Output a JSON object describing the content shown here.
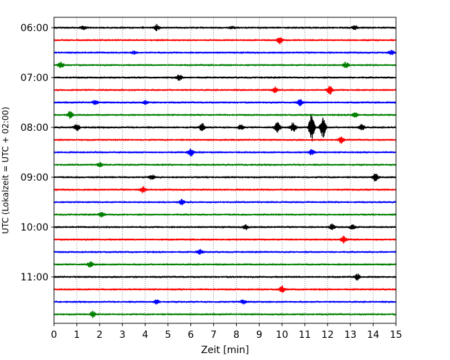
{
  "chart_data": {
    "type": "line",
    "subtype": "helicorder",
    "xlabel": "Zeit  [min]",
    "ylabel": "UTC (Lokalzeit = UTC + 02:00)",
    "xlim": [
      0,
      15
    ],
    "x_ticks": [
      "0",
      "1",
      "2",
      "3",
      "4",
      "5",
      "6",
      "7",
      "8",
      "9",
      "10",
      "11",
      "12",
      "13",
      "14",
      "15"
    ],
    "y_tick_labels": [
      "06:00",
      "07:00",
      "08:00",
      "09:00",
      "10:00",
      "11:00"
    ],
    "grid": "vertical-dotted",
    "trace_minutes": 15,
    "trace_colors": [
      "#000000",
      "#ff0000",
      "#0000ff",
      "#008000"
    ],
    "traces": [
      {
        "start": "06:00",
        "color": "#000000",
        "events": [
          [
            4.5,
            0.35
          ],
          [
            13.2,
            0.25
          ],
          [
            1.3,
            0.2
          ],
          [
            7.8,
            0.15
          ]
        ]
      },
      {
        "start": "06:15",
        "color": "#ff0000",
        "events": [
          [
            9.9,
            0.45
          ]
        ]
      },
      {
        "start": "06:30",
        "color": "#0000ff",
        "events": [
          [
            3.5,
            0.15
          ],
          [
            14.8,
            0.25
          ]
        ]
      },
      {
        "start": "06:45",
        "color": "#008000",
        "events": [
          [
            0.3,
            0.35
          ],
          [
            12.8,
            0.35
          ]
        ]
      },
      {
        "start": "07:00",
        "color": "#000000",
        "events": [
          [
            5.5,
            0.35
          ]
        ]
      },
      {
        "start": "07:15",
        "color": "#ff0000",
        "events": [
          [
            9.7,
            0.35
          ],
          [
            12.1,
            0.55
          ]
        ]
      },
      {
        "start": "07:30",
        "color": "#0000ff",
        "events": [
          [
            1.8,
            0.25
          ],
          [
            4.0,
            0.2
          ],
          [
            10.8,
            0.4
          ]
        ]
      },
      {
        "start": "07:45",
        "color": "#008000",
        "events": [
          [
            0.7,
            0.45
          ],
          [
            13.2,
            0.35
          ]
        ]
      },
      {
        "start": "08:00",
        "color": "#000000",
        "events": [
          [
            1.0,
            0.45
          ],
          [
            6.5,
            0.5
          ],
          [
            8.2,
            0.3
          ],
          [
            9.8,
            0.7
          ],
          [
            10.5,
            0.7
          ],
          [
            11.3,
            1.9
          ],
          [
            11.8,
            1.3
          ],
          [
            13.5,
            0.4
          ]
        ]
      },
      {
        "start": "08:15",
        "color": "#ff0000",
        "events": [
          [
            12.6,
            0.4
          ]
        ]
      },
      {
        "start": "08:30",
        "color": "#0000ff",
        "events": [
          [
            6.0,
            0.45
          ],
          [
            11.3,
            0.35
          ]
        ]
      },
      {
        "start": "08:45",
        "color": "#008000",
        "events": [
          [
            2.0,
            0.25
          ]
        ]
      },
      {
        "start": "09:00",
        "color": "#000000",
        "events": [
          [
            4.3,
            0.3
          ],
          [
            14.1,
            0.45
          ]
        ]
      },
      {
        "start": "09:15",
        "color": "#ff0000",
        "events": [
          [
            3.9,
            0.4
          ]
        ]
      },
      {
        "start": "09:30",
        "color": "#0000ff",
        "events": [
          [
            5.6,
            0.3
          ]
        ]
      },
      {
        "start": "09:45",
        "color": "#008000",
        "events": [
          [
            2.1,
            0.3
          ]
        ]
      },
      {
        "start": "10:00",
        "color": "#000000",
        "events": [
          [
            8.4,
            0.3
          ],
          [
            12.2,
            0.35
          ],
          [
            13.1,
            0.25
          ]
        ]
      },
      {
        "start": "10:15",
        "color": "#ff0000",
        "events": [
          [
            12.7,
            0.45
          ]
        ]
      },
      {
        "start": "10:30",
        "color": "#0000ff",
        "events": [
          [
            6.4,
            0.3
          ]
        ]
      },
      {
        "start": "10:45",
        "color": "#008000",
        "events": [
          [
            1.6,
            0.35
          ]
        ]
      },
      {
        "start": "11:00",
        "color": "#000000",
        "events": [
          [
            13.3,
            0.35
          ]
        ]
      },
      {
        "start": "11:15",
        "color": "#ff0000",
        "events": [
          [
            10.0,
            0.4
          ]
        ]
      },
      {
        "start": "11:30",
        "color": "#0000ff",
        "events": [
          [
            4.5,
            0.25
          ],
          [
            8.3,
            0.3
          ]
        ]
      },
      {
        "start": "11:45",
        "color": "#008000",
        "events": [
          [
            1.7,
            0.4
          ]
        ]
      }
    ]
  }
}
